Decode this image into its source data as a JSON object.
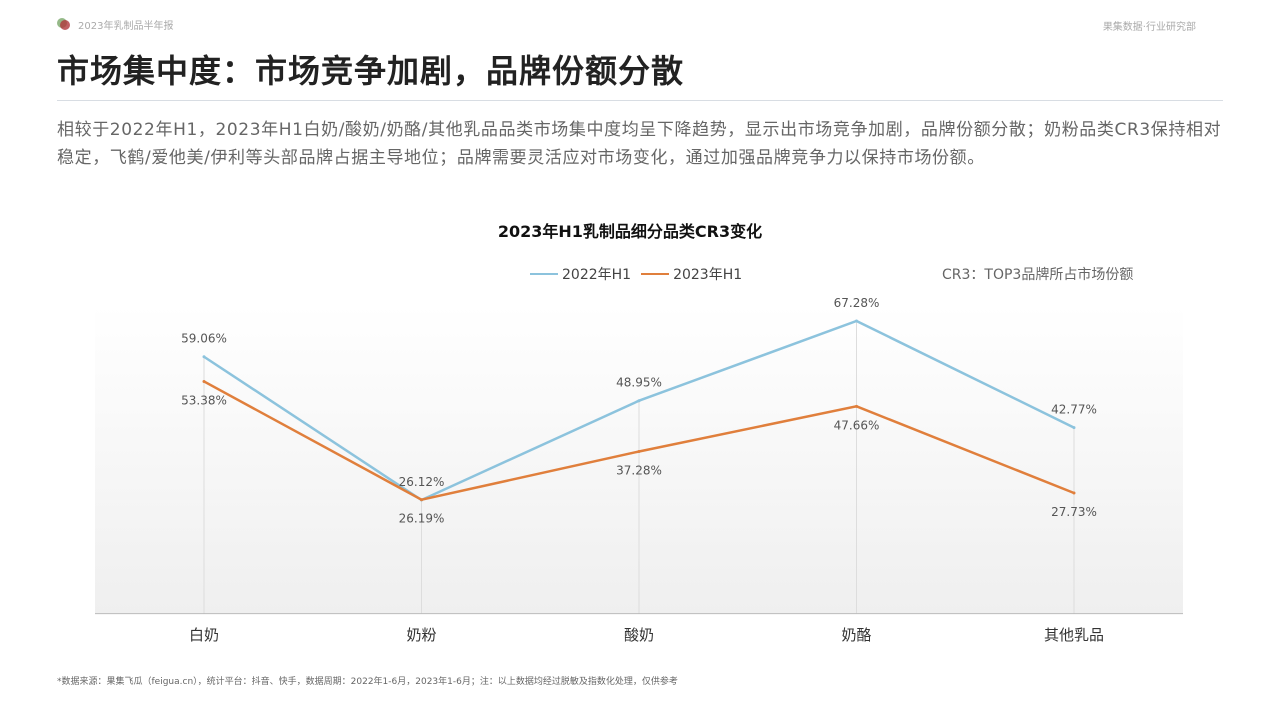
{
  "header": {
    "left": "2023年乳制品半年报",
    "right": "果集数据·行业研究部"
  },
  "title": "市场集中度：市场竞争加剧，品牌份额分散",
  "description": "相较于2022年H1，2023年H1白奶/酸奶/奶酪/其他乳品品类市场集中度均呈下降趋势，显示出市场竞争加剧，品牌份额分散；奶粉品类CR3保持相对稳定，飞鹤/爱他美/伊利等头部品牌占据主导地位；品牌需要灵活应对市场变化，通过加强品牌竞争力以保持市场份额。",
  "note": "CR3：TOP3品牌所占市场份额",
  "footer": "*数据来源：果集飞瓜（feigua.cn），统计平台：抖音、快手，数据周期：2022年1-6月，2023年1-6月；注：以上数据均经过脱敏及指数化处理，仅供参考",
  "chart_data": {
    "type": "line",
    "title": "2023年H1乳制品细分品类CR3变化",
    "categories": [
      "白奶",
      "奶粉",
      "酸奶",
      "奶酪",
      "其他乳品"
    ],
    "series": [
      {
        "name": "2022年H1",
        "color": "#8cc3dd",
        "values": [
          59.06,
          26.12,
          48.95,
          67.28,
          42.77
        ],
        "labels": [
          "59.06%",
          "26.12%",
          "48.95%",
          "67.28%",
          "42.77%"
        ]
      },
      {
        "name": "2023年H1",
        "color": "#e07f3c",
        "values": [
          53.38,
          26.19,
          37.28,
          47.66,
          27.73
        ],
        "labels": [
          "53.38%",
          "26.19%",
          "37.28%",
          "47.66%",
          "27.73%"
        ]
      }
    ],
    "ylim": [
      0,
      70
    ],
    "grid": false,
    "legend": "top-center",
    "xlabel": "",
    "ylabel": ""
  }
}
